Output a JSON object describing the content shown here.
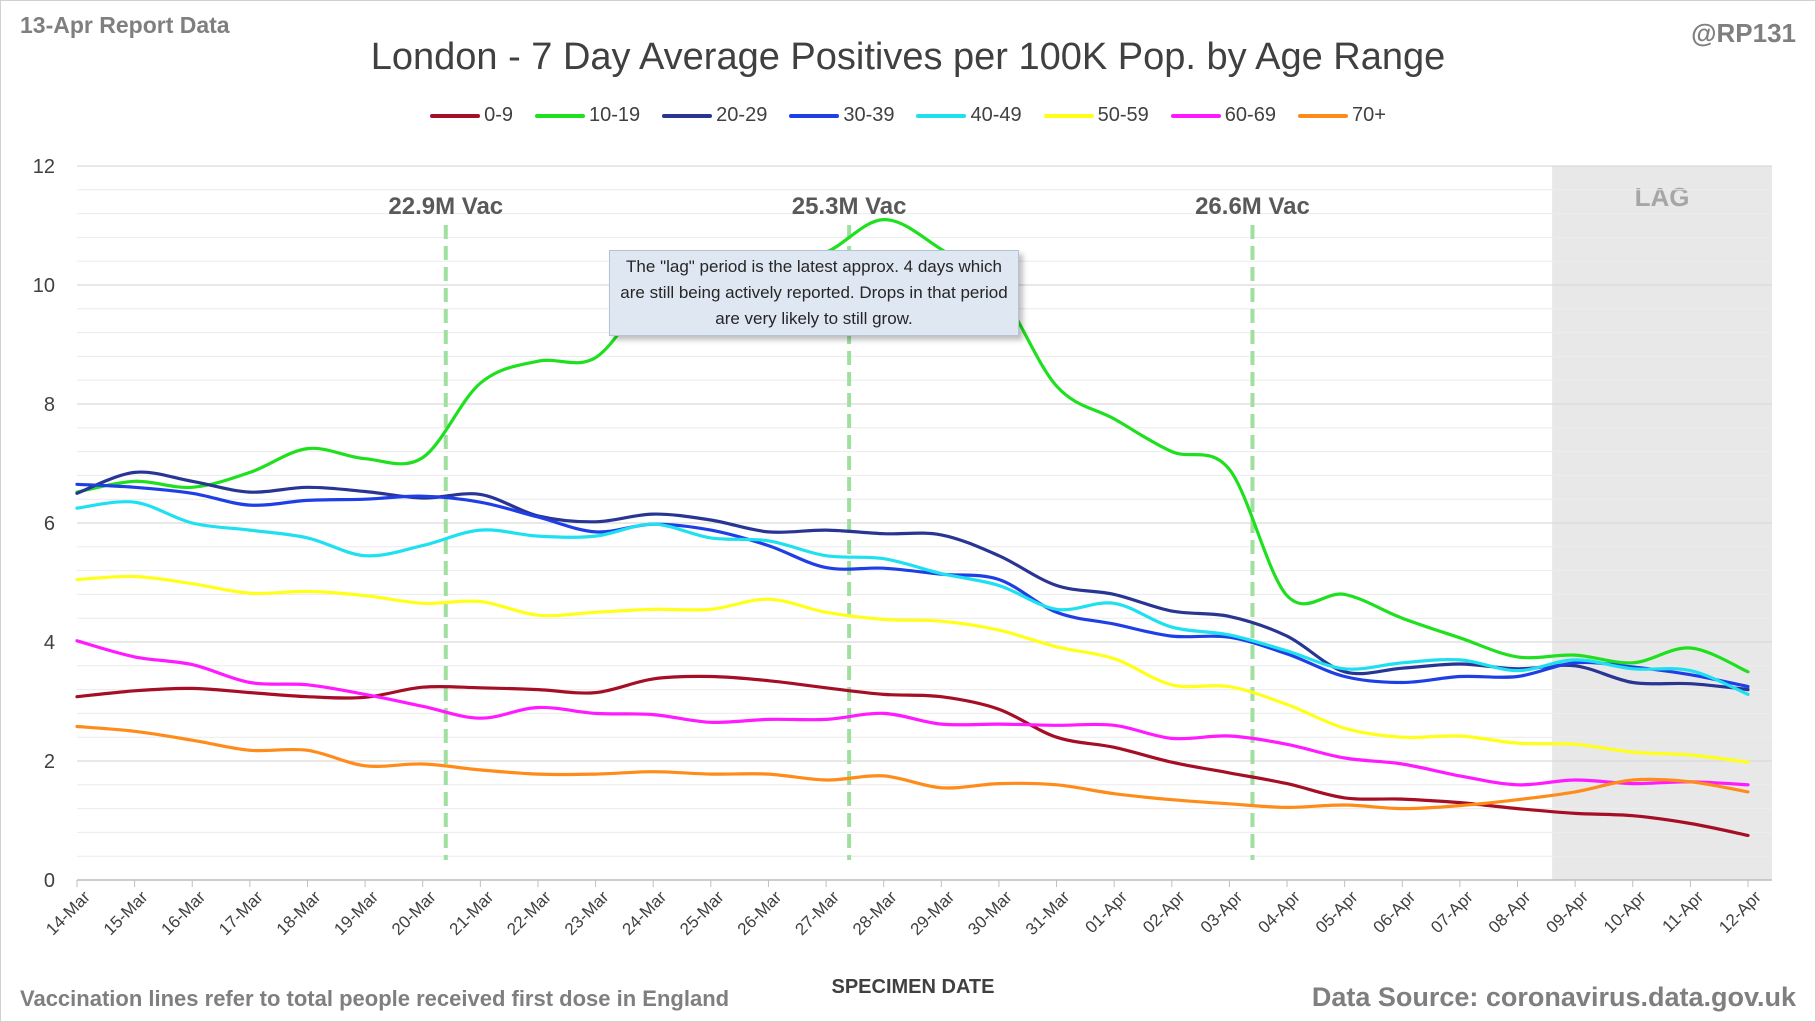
{
  "header": {
    "report_label": "13-Apr Report Data",
    "handle": "@RP131"
  },
  "footer": {
    "note": "Vaccination lines refer to total people received first dose in England",
    "source": "Data Source: coronavirus.data.gov.uk"
  },
  "callout": {
    "text": "The \"lag\" period is the latest approx. 4 days which are still being actively reported. Drops in that period are very likely to still grow."
  },
  "chart_data": {
    "type": "line",
    "title": "London - 7 Day Average Positives per 100K Pop. by Age Range",
    "xlabel": "SPECIMEN DATE",
    "ylabel": "",
    "ylim": [
      0,
      12
    ],
    "yticks": [
      0,
      2,
      4,
      6,
      8,
      10,
      12
    ],
    "grid": true,
    "legend_position": "top",
    "categories": [
      "14-Mar",
      "15-Mar",
      "16-Mar",
      "17-Mar",
      "18-Mar",
      "19-Mar",
      "20-Mar",
      "21-Mar",
      "22-Mar",
      "23-Mar",
      "24-Mar",
      "25-Mar",
      "26-Mar",
      "27-Mar",
      "28-Mar",
      "29-Mar",
      "30-Mar",
      "31-Mar",
      "01-Apr",
      "02-Apr",
      "03-Apr",
      "04-Apr",
      "05-Apr",
      "06-Apr",
      "07-Apr",
      "08-Apr",
      "09-Apr",
      "10-Apr",
      "11-Apr",
      "12-Apr"
    ],
    "series": [
      {
        "name": "0-9",
        "color": "#a50f26",
        "values": [
          3.08,
          3.18,
          3.22,
          3.15,
          3.08,
          3.07,
          3.24,
          3.23,
          3.2,
          3.15,
          3.38,
          3.42,
          3.35,
          3.23,
          3.12,
          3.08,
          2.87,
          2.4,
          2.23,
          1.98,
          1.8,
          1.62,
          1.38,
          1.36,
          1.3,
          1.2,
          1.12,
          1.08,
          0.95,
          0.75
        ]
      },
      {
        "name": "10-19",
        "color": "#1ee01e",
        "values": [
          6.52,
          6.7,
          6.6,
          6.85,
          7.25,
          7.08,
          7.1,
          8.35,
          8.72,
          8.78,
          9.9,
          10.3,
          10.3,
          10.55,
          11.1,
          10.6,
          9.9,
          8.3,
          7.75,
          7.2,
          6.9,
          4.78,
          4.8,
          4.4,
          4.07,
          3.75,
          3.78,
          3.65,
          3.9,
          3.5
        ]
      },
      {
        "name": "20-29",
        "color": "#283593",
        "values": [
          6.5,
          6.85,
          6.7,
          6.52,
          6.6,
          6.53,
          6.42,
          6.48,
          6.12,
          6.02,
          6.15,
          6.05,
          5.85,
          5.88,
          5.82,
          5.8,
          5.45,
          4.95,
          4.8,
          4.52,
          4.43,
          4.1,
          3.5,
          3.56,
          3.63,
          3.55,
          3.6,
          3.32,
          3.3,
          3.2
        ]
      },
      {
        "name": "30-39",
        "color": "#1f3fe6",
        "values": [
          6.65,
          6.6,
          6.5,
          6.3,
          6.38,
          6.4,
          6.45,
          6.35,
          6.1,
          5.85,
          5.98,
          5.88,
          5.62,
          5.25,
          5.24,
          5.14,
          5.05,
          4.5,
          4.3,
          4.1,
          4.08,
          3.8,
          3.42,
          3.32,
          3.42,
          3.42,
          3.65,
          3.58,
          3.45,
          3.25
        ]
      },
      {
        "name": "40-49",
        "color": "#1ee0f0",
        "values": [
          6.25,
          6.35,
          6.0,
          5.88,
          5.75,
          5.45,
          5.62,
          5.88,
          5.78,
          5.78,
          5.98,
          5.75,
          5.7,
          5.45,
          5.4,
          5.15,
          4.95,
          4.55,
          4.65,
          4.25,
          4.12,
          3.85,
          3.55,
          3.65,
          3.7,
          3.52,
          3.7,
          3.55,
          3.52,
          3.12
        ]
      },
      {
        "name": "50-59",
        "color": "#ffff1a",
        "values": [
          5.05,
          5.1,
          4.98,
          4.82,
          4.85,
          4.78,
          4.65,
          4.68,
          4.45,
          4.5,
          4.55,
          4.55,
          4.72,
          4.5,
          4.38,
          4.35,
          4.2,
          3.92,
          3.72,
          3.28,
          3.25,
          2.95,
          2.55,
          2.4,
          2.42,
          2.3,
          2.28,
          2.15,
          2.1,
          1.98
        ]
      },
      {
        "name": "60-69",
        "color": "#ff1aff",
        "values": [
          4.02,
          3.75,
          3.62,
          3.32,
          3.28,
          3.12,
          2.92,
          2.72,
          2.9,
          2.8,
          2.78,
          2.65,
          2.7,
          2.7,
          2.8,
          2.62,
          2.62,
          2.6,
          2.6,
          2.38,
          2.42,
          2.28,
          2.05,
          1.95,
          1.75,
          1.6,
          1.68,
          1.62,
          1.65,
          1.6
        ]
      },
      {
        "name": "70+",
        "color": "#ff8c1a",
        "values": [
          2.58,
          2.5,
          2.35,
          2.18,
          2.18,
          1.92,
          1.95,
          1.85,
          1.78,
          1.78,
          1.82,
          1.78,
          1.78,
          1.68,
          1.75,
          1.55,
          1.62,
          1.6,
          1.45,
          1.35,
          1.28,
          1.22,
          1.26,
          1.2,
          1.25,
          1.35,
          1.48,
          1.68,
          1.65,
          1.48
        ]
      }
    ],
    "vaccination_lines": [
      {
        "label": "22.9M Vac",
        "x": 6.4
      },
      {
        "label": "25.3M Vac",
        "x": 13.4
      },
      {
        "label": "26.6M Vac",
        "x": 20.4
      }
    ],
    "lag_region": {
      "label": "LAG",
      "x_start": 25.6,
      "x_end": 29.45
    }
  }
}
